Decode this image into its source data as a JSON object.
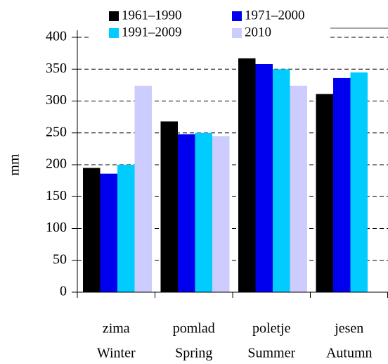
{
  "chart_data": {
    "type": "bar",
    "y_label": "mm",
    "categories": [
      [
        "zima",
        "Winter"
      ],
      [
        "pomlad",
        "Spring"
      ],
      [
        "poletje",
        "Summer"
      ],
      [
        "jesen",
        "Autumn"
      ]
    ],
    "series": [
      {
        "name": "1961–1990",
        "color": "#000000",
        "values": [
          195,
          268,
          367,
          311
        ]
      },
      {
        "name": "1971–2000",
        "color": "#0000ee",
        "values": [
          186,
          248,
          358,
          336
        ]
      },
      {
        "name": "1991–2009",
        "color": "#00ccff",
        "values": [
          200,
          250,
          350,
          345
        ]
      },
      {
        "name": "2010",
        "color": "#ccccff",
        "values": [
          324,
          245,
          324,
          null
        ]
      }
    ],
    "ylim": [
      0,
      400
    ],
    "yticks": [
      0,
      50,
      100,
      150,
      200,
      250,
      300,
      350,
      400
    ],
    "grid": true
  }
}
